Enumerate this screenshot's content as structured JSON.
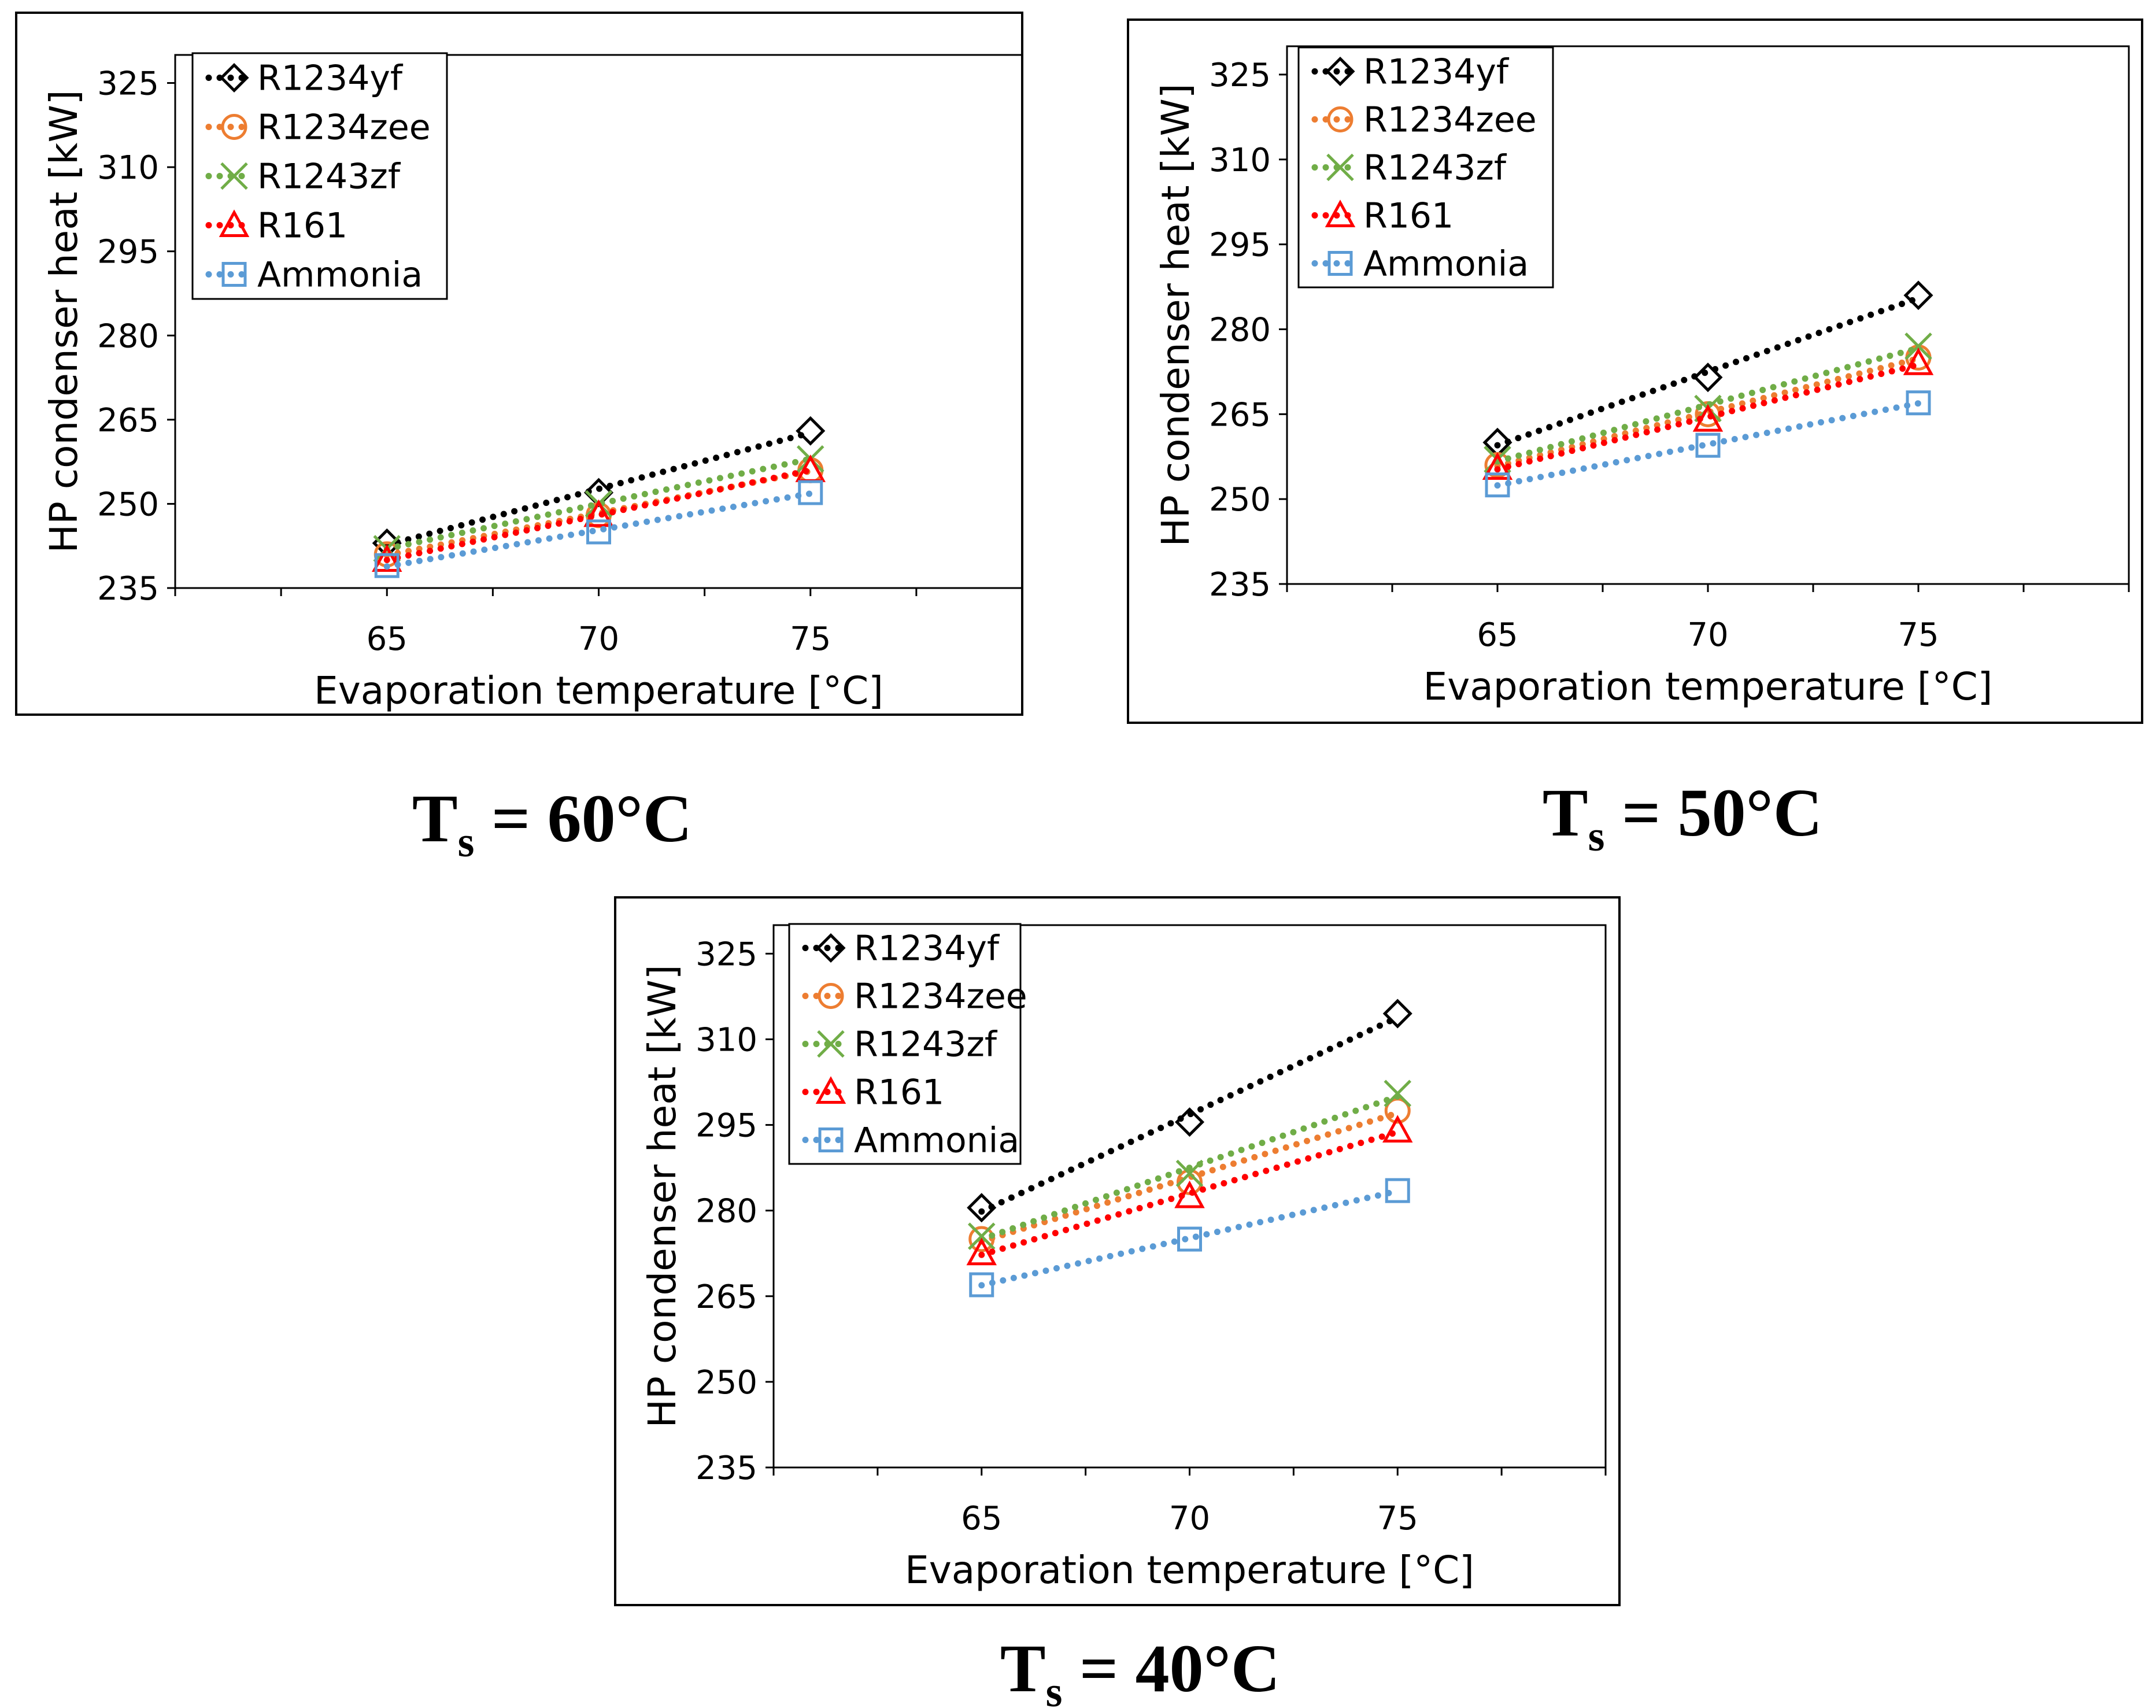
{
  "colors": {
    "R1234yf": "#000000",
    "R1234zee": "#ed7d31",
    "R1243zf": "#70ad47",
    "R161": "#ff0000",
    "Ammonia": "#5b9bd5"
  },
  "chart_data": [
    {
      "type": "scatter",
      "caption": {
        "main": "T",
        "sub": "s",
        "rest": " = 60°C"
      },
      "xlabel": "Evaporation temperature [°C]",
      "ylabel": "HP condenser heat [kW]",
      "xlim": [
        60,
        80
      ],
      "ylim": [
        235,
        330
      ],
      "xticks": [
        65,
        70,
        75
      ],
      "yticks": [
        235,
        250,
        265,
        280,
        295,
        310,
        325
      ],
      "x": [
        65,
        70,
        75
      ],
      "legend_position": "top-left",
      "trendlines": "dotted linear",
      "series": [
        {
          "name": "R1234yf",
          "marker": "diamond",
          "values": [
            243,
            252,
            263
          ]
        },
        {
          "name": "R1234zee",
          "marker": "circle",
          "values": [
            241,
            248,
            256
          ]
        },
        {
          "name": "R1243zf",
          "marker": "x",
          "values": [
            242,
            250,
            258
          ]
        },
        {
          "name": "R161",
          "marker": "triangle",
          "values": [
            240,
            248,
            256
          ]
        },
        {
          "name": "Ammonia",
          "marker": "square",
          "values": [
            239,
            245,
            252
          ]
        }
      ]
    },
    {
      "type": "scatter",
      "caption": {
        "main": "T",
        "sub": "s",
        "rest": " = 50°C"
      },
      "xlabel": "Evaporation temperature [°C]",
      "ylabel": "HP condenser heat [kW]",
      "xlim": [
        60,
        80
      ],
      "ylim": [
        235,
        330
      ],
      "xticks": [
        65,
        70,
        75
      ],
      "yticks": [
        235,
        250,
        265,
        280,
        295,
        310,
        325
      ],
      "x": [
        65,
        70,
        75
      ],
      "legend_position": "top-left",
      "trendlines": "dotted linear",
      "series": [
        {
          "name": "R1234yf",
          "marker": "diamond",
          "values": [
            260,
            271.5,
            286
          ]
        },
        {
          "name": "R1234zee",
          "marker": "circle",
          "values": [
            256,
            265,
            275
          ]
        },
        {
          "name": "R1243zf",
          "marker": "x",
          "values": [
            257,
            266,
            277
          ]
        },
        {
          "name": "R161",
          "marker": "triangle",
          "values": [
            255.5,
            264,
            274
          ]
        },
        {
          "name": "Ammonia",
          "marker": "square",
          "values": [
            252.5,
            259.5,
            267
          ]
        }
      ]
    },
    {
      "type": "scatter",
      "caption": {
        "main": "T",
        "sub": "s",
        "rest": " = 40°C"
      },
      "xlabel": "Evaporation temperature [°C]",
      "ylabel": "HP condenser heat [kW]",
      "xlim": [
        60,
        80
      ],
      "ylim": [
        235,
        330
      ],
      "xticks": [
        65,
        70,
        75
      ],
      "yticks": [
        235,
        250,
        265,
        280,
        295,
        310,
        325
      ],
      "x": [
        65,
        70,
        75
      ],
      "legend_position": "top-left",
      "trendlines": "dotted linear",
      "series": [
        {
          "name": "R1234yf",
          "marker": "diamond",
          "values": [
            280.5,
            295.5,
            314.5
          ]
        },
        {
          "name": "R1234zee",
          "marker": "circle",
          "values": [
            275,
            285,
            297.5
          ]
        },
        {
          "name": "R1243zf",
          "marker": "x",
          "values": [
            275.5,
            286.5,
            300.5
          ]
        },
        {
          "name": "R161",
          "marker": "triangle",
          "values": [
            272.5,
            282.5,
            294
          ]
        },
        {
          "name": "Ammonia",
          "marker": "square",
          "values": [
            267,
            275,
            283.5
          ]
        }
      ]
    }
  ]
}
